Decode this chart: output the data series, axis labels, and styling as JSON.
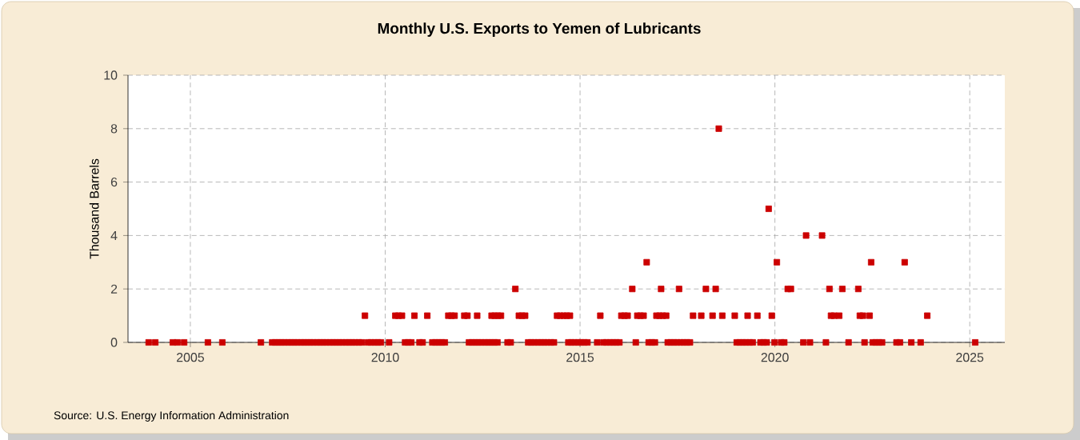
{
  "chart_data": {
    "type": "scatter",
    "title": "Monthly U.S. Exports to Yemen of Lubricants",
    "ylabel": "Thousand Barrels",
    "annotations": [
      "Source: U.S. Energy Information Administration"
    ],
    "xlim": [
      2003.4,
      2025.9
    ],
    "xticks": [
      2005,
      2010,
      2015,
      2020,
      2025
    ],
    "ylim": [
      0,
      10
    ],
    "yticks": [
      0,
      2,
      4,
      6,
      8,
      10
    ],
    "grid": true,
    "marker": "square",
    "series": [
      {
        "color": "#cc0000",
        "x": [
          2003.93,
          2004.1,
          2004.55,
          2004.67,
          2004.84,
          2005.45,
          2005.82,
          2006.81,
          2007.1,
          2007.18,
          2007.26,
          2007.34,
          2007.42,
          2007.51,
          2007.59,
          2007.67,
          2007.75,
          2007.84,
          2007.92,
          2008.0,
          2008.08,
          2008.16,
          2008.25,
          2008.33,
          2008.41,
          2008.49,
          2008.58,
          2008.66,
          2008.74,
          2008.82,
          2008.9,
          2008.99,
          2009.07,
          2009.15,
          2009.23,
          2009.32,
          2009.4,
          2009.56,
          2009.64,
          2009.73,
          2009.81,
          2009.89,
          2010.1,
          2010.51,
          2010.59,
          2010.67,
          2010.88,
          2010.96,
          2011.21,
          2011.29,
          2011.37,
          2011.45,
          2011.53,
          2012.15,
          2012.23,
          2012.31,
          2012.39,
          2012.47,
          2012.56,
          2012.64,
          2012.72,
          2012.8,
          2012.88,
          2013.14,
          2013.22,
          2013.67,
          2013.75,
          2013.83,
          2013.92,
          2014.0,
          2014.08,
          2014.16,
          2014.25,
          2014.33,
          2014.7,
          2014.78,
          2014.86,
          2014.95,
          2015.03,
          2015.11,
          2015.19,
          2015.44,
          2015.6,
          2015.68,
          2015.77,
          2015.85,
          2015.93,
          2016.01,
          2016.43,
          2016.76,
          2016.84,
          2016.92,
          2017.25,
          2017.33,
          2017.41,
          2017.49,
          2017.58,
          2017.66,
          2017.74,
          2017.82,
          2019.02,
          2019.1,
          2019.18,
          2019.26,
          2019.35,
          2019.43,
          2019.63,
          2019.71,
          2019.79,
          2019.99,
          2020.16,
          2020.24,
          2020.73,
          2020.9,
          2021.31,
          2021.89,
          2022.3,
          2022.51,
          2022.59,
          2022.67,
          2022.75,
          2023.12,
          2023.21,
          2023.5,
          2023.74,
          2025.14,
          2009.48,
          2010.26,
          2010.34,
          2010.43,
          2010.75,
          2011.08,
          2011.62,
          2011.7,
          2011.78,
          2012.03,
          2012.11,
          2012.36,
          2012.73,
          2012.81,
          2012.89,
          2012.97,
          2013.43,
          2013.51,
          2013.59,
          2014.41,
          2014.49,
          2014.58,
          2014.66,
          2014.74,
          2015.52,
          2016.06,
          2016.14,
          2016.22,
          2016.47,
          2016.55,
          2016.63,
          2016.96,
          2017.04,
          2017.12,
          2017.21,
          2017.9,
          2018.11,
          2018.4,
          2018.65,
          2018.97,
          2019.3,
          2019.55,
          2019.92,
          2021.44,
          2021.52,
          2021.65,
          2022.18,
          2022.26,
          2022.43,
          2023.91,
          2013.34,
          2016.34,
          2017.08,
          2017.54,
          2018.23,
          2018.48,
          2020.33,
          2020.41,
          2021.4,
          2021.73,
          2022.14,
          2016.71,
          2020.05,
          2022.47,
          2023.33,
          2020.8,
          2021.21,
          2019.84,
          2018.56
        ],
        "values": [
          0,
          0,
          0,
          0,
          0,
          0,
          0,
          0,
          0,
          0,
          0,
          0,
          0,
          0,
          0,
          0,
          0,
          0,
          0,
          0,
          0,
          0,
          0,
          0,
          0,
          0,
          0,
          0,
          0,
          0,
          0,
          0,
          0,
          0,
          0,
          0,
          0,
          0,
          0,
          0,
          0,
          0,
          0,
          0,
          0,
          0,
          0,
          0,
          0,
          0,
          0,
          0,
          0,
          0,
          0,
          0,
          0,
          0,
          0,
          0,
          0,
          0,
          0,
          0,
          0,
          0,
          0,
          0,
          0,
          0,
          0,
          0,
          0,
          0,
          0,
          0,
          0,
          0,
          0,
          0,
          0,
          0,
          0,
          0,
          0,
          0,
          0,
          0,
          0,
          0,
          0,
          0,
          0,
          0,
          0,
          0,
          0,
          0,
          0,
          0,
          0,
          0,
          0,
          0,
          0,
          0,
          0,
          0,
          0,
          0,
          0,
          0,
          0,
          0,
          0,
          0,
          0,
          0,
          0,
          0,
          0,
          0,
          0,
          0,
          0,
          0,
          1,
          1,
          1,
          1,
          1,
          1,
          1,
          1,
          1,
          1,
          1,
          1,
          1,
          1,
          1,
          1,
          1,
          1,
          1,
          1,
          1,
          1,
          1,
          1,
          1,
          1,
          1,
          1,
          1,
          1,
          1,
          1,
          1,
          1,
          1,
          1,
          1,
          1,
          1,
          1,
          1,
          1,
          1,
          1,
          1,
          1,
          1,
          1,
          1,
          1,
          2,
          2,
          2,
          2,
          2,
          2,
          2,
          2,
          2,
          2,
          2,
          3,
          3,
          3,
          3,
          4,
          4,
          5,
          8
        ]
      }
    ]
  }
}
